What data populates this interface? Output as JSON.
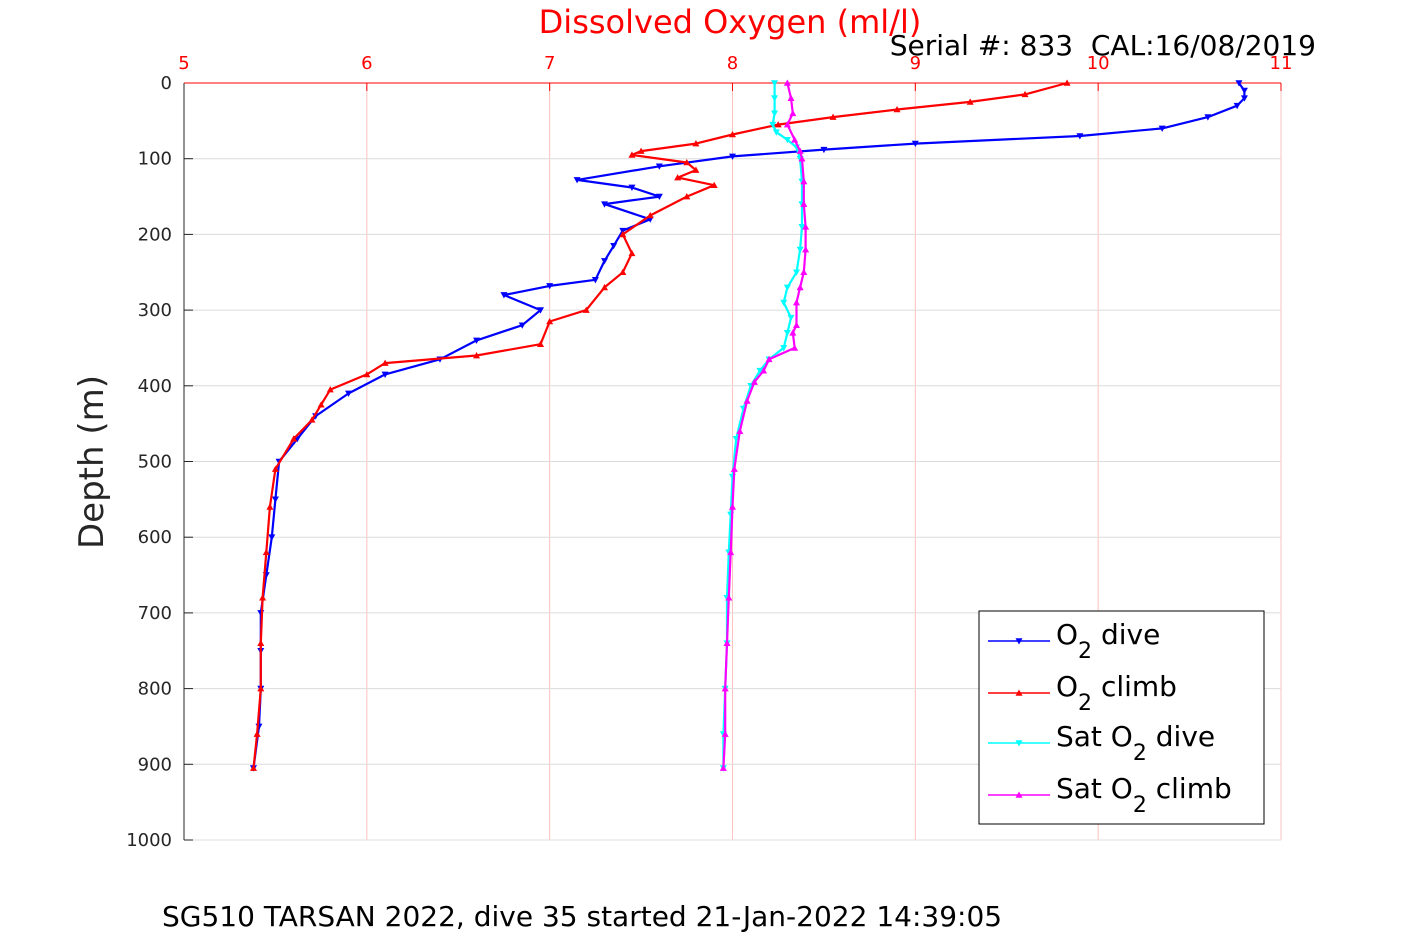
{
  "chart_data": {
    "type": "line",
    "title": "Dissolved Oxygen (ml/l)",
    "annotation": "Serial #: 833  CAL:16/08/2019",
    "caption": "SG510 TARSAN 2022, dive 35 started 21-Jan-2022 14:39:05",
    "xlabel": "",
    "ylabel": "Depth (m)",
    "xlim": [
      5,
      11
    ],
    "ylim": [
      0,
      1000
    ],
    "y_reversed": true,
    "x_axis_position": "top",
    "grid": true,
    "legend_position": "bottom-right",
    "x_ticks": [
      "5",
      "6",
      "7",
      "8",
      "9",
      "10",
      "11"
    ],
    "y_ticks": [
      "0",
      "100",
      "200",
      "300",
      "400",
      "500",
      "600",
      "700",
      "800",
      "900",
      "1000"
    ],
    "series": [
      {
        "name_main": "O",
        "name_sub": "2",
        "name_post": " dive",
        "color": "#0000ff",
        "marker": "triangle-down",
        "points": [
          [
            10.77,
            0
          ],
          [
            10.8,
            10
          ],
          [
            10.8,
            20
          ],
          [
            10.76,
            30
          ],
          [
            10.6,
            45
          ],
          [
            10.35,
            60
          ],
          [
            9.9,
            70
          ],
          [
            9.0,
            80
          ],
          [
            8.5,
            88
          ],
          [
            8.0,
            97
          ],
          [
            7.6,
            110
          ],
          [
            7.15,
            128
          ],
          [
            7.45,
            138
          ],
          [
            7.6,
            150
          ],
          [
            7.3,
            160
          ],
          [
            7.55,
            180
          ],
          [
            7.4,
            195
          ],
          [
            7.35,
            215
          ],
          [
            7.3,
            235
          ],
          [
            7.25,
            260
          ],
          [
            7.0,
            268
          ],
          [
            6.75,
            280
          ],
          [
            6.95,
            300
          ],
          [
            6.85,
            320
          ],
          [
            6.6,
            340
          ],
          [
            6.4,
            365
          ],
          [
            6.1,
            385
          ],
          [
            5.9,
            410
          ],
          [
            5.72,
            440
          ],
          [
            5.62,
            470
          ],
          [
            5.52,
            500
          ],
          [
            5.5,
            550
          ],
          [
            5.48,
            600
          ],
          [
            5.45,
            650
          ],
          [
            5.42,
            700
          ],
          [
            5.42,
            750
          ],
          [
            5.42,
            800
          ],
          [
            5.41,
            850
          ],
          [
            5.38,
            905
          ]
        ]
      },
      {
        "name_main": "O",
        "name_sub": "2",
        "name_post": " climb",
        "color": "#ff0000",
        "marker": "triangle-up",
        "points": [
          [
            9.83,
            0
          ],
          [
            9.6,
            15
          ],
          [
            9.3,
            25
          ],
          [
            8.9,
            35
          ],
          [
            8.55,
            45
          ],
          [
            8.25,
            55
          ],
          [
            8.0,
            68
          ],
          [
            7.8,
            80
          ],
          [
            7.5,
            90
          ],
          [
            7.45,
            95
          ],
          [
            7.75,
            105
          ],
          [
            7.8,
            115
          ],
          [
            7.7,
            125
          ],
          [
            7.9,
            135
          ],
          [
            7.75,
            150
          ],
          [
            7.55,
            175
          ],
          [
            7.4,
            200
          ],
          [
            7.45,
            225
          ],
          [
            7.4,
            250
          ],
          [
            7.3,
            270
          ],
          [
            7.2,
            300
          ],
          [
            7.0,
            315
          ],
          [
            6.95,
            345
          ],
          [
            6.6,
            360
          ],
          [
            6.1,
            370
          ],
          [
            6.0,
            385
          ],
          [
            5.8,
            405
          ],
          [
            5.75,
            425
          ],
          [
            5.7,
            445
          ],
          [
            5.6,
            470
          ],
          [
            5.5,
            510
          ],
          [
            5.47,
            560
          ],
          [
            5.45,
            620
          ],
          [
            5.43,
            680
          ],
          [
            5.42,
            740
          ],
          [
            5.42,
            800
          ],
          [
            5.4,
            860
          ],
          [
            5.38,
            905
          ]
        ]
      },
      {
        "name_main": "Sat O",
        "name_sub": "2",
        "name_post": " dive",
        "color": "#00ffff",
        "marker": "triangle-down",
        "points": [
          [
            8.23,
            0
          ],
          [
            8.23,
            20
          ],
          [
            8.23,
            40
          ],
          [
            8.22,
            55
          ],
          [
            8.24,
            65
          ],
          [
            8.3,
            75
          ],
          [
            8.35,
            85
          ],
          [
            8.37,
            100
          ],
          [
            8.38,
            130
          ],
          [
            8.38,
            160
          ],
          [
            8.38,
            190
          ],
          [
            8.37,
            220
          ],
          [
            8.35,
            250
          ],
          [
            8.3,
            270
          ],
          [
            8.28,
            290
          ],
          [
            8.32,
            310
          ],
          [
            8.3,
            330
          ],
          [
            8.28,
            350
          ],
          [
            8.2,
            365
          ],
          [
            8.15,
            380
          ],
          [
            8.1,
            400
          ],
          [
            8.06,
            430
          ],
          [
            8.02,
            470
          ],
          [
            8.0,
            520
          ],
          [
            7.99,
            570
          ],
          [
            7.98,
            620
          ],
          [
            7.97,
            680
          ],
          [
            7.97,
            740
          ],
          [
            7.96,
            800
          ],
          [
            7.95,
            860
          ],
          [
            7.95,
            905
          ]
        ]
      },
      {
        "name_main": "Sat O",
        "name_sub": "2",
        "name_post": " climb",
        "color": "#ff00ff",
        "marker": "triangle-up",
        "points": [
          [
            8.3,
            0
          ],
          [
            8.32,
            20
          ],
          [
            8.33,
            40
          ],
          [
            8.3,
            55
          ],
          [
            8.34,
            75
          ],
          [
            8.37,
            90
          ],
          [
            8.38,
            100
          ],
          [
            8.39,
            130
          ],
          [
            8.39,
            160
          ],
          [
            8.4,
            190
          ],
          [
            8.4,
            220
          ],
          [
            8.39,
            250
          ],
          [
            8.37,
            270
          ],
          [
            8.35,
            290
          ],
          [
            8.35,
            320
          ],
          [
            8.33,
            330
          ],
          [
            8.34,
            350
          ],
          [
            8.2,
            365
          ],
          [
            8.17,
            380
          ],
          [
            8.12,
            395
          ],
          [
            8.08,
            420
          ],
          [
            8.04,
            460
          ],
          [
            8.01,
            510
          ],
          [
            8.0,
            560
          ],
          [
            7.99,
            620
          ],
          [
            7.98,
            680
          ],
          [
            7.97,
            740
          ],
          [
            7.96,
            800
          ],
          [
            7.96,
            860
          ],
          [
            7.95,
            905
          ]
        ]
      }
    ]
  }
}
